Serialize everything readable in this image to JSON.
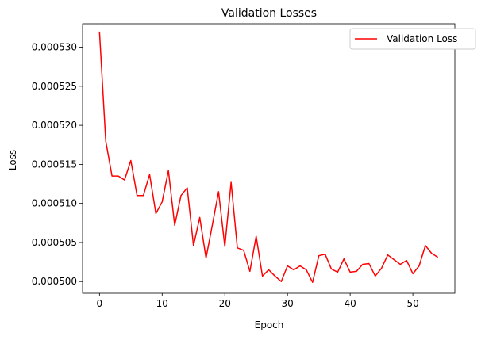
{
  "chart_data": {
    "type": "line",
    "title": "Validation Losses",
    "xlabel": "Epoch",
    "ylabel": "Loss",
    "xlim": [
      -2.7,
      56.7
    ],
    "ylim": [
      0.0004985,
      0.000533
    ],
    "xticks": [
      0,
      10,
      20,
      30,
      40,
      50
    ],
    "xtick_labels": [
      "0",
      "10",
      "20",
      "30",
      "40",
      "50"
    ],
    "yticks": [
      0.0005,
      0.000505,
      0.00051,
      0.000515,
      0.00052,
      0.000525,
      0.00053
    ],
    "ytick_labels": [
      "0.000500",
      "0.000505",
      "0.000510",
      "0.000515",
      "0.000520",
      "0.000525",
      "0.000530"
    ],
    "grid": false,
    "legend_position": "top-right",
    "series": [
      {
        "name": "Validation Loss",
        "color": "#ff0000",
        "x": [
          0,
          1,
          2,
          3,
          4,
          5,
          6,
          7,
          8,
          9,
          10,
          11,
          12,
          13,
          14,
          15,
          16,
          17,
          18,
          19,
          20,
          21,
          22,
          23,
          24,
          25,
          26,
          27,
          28,
          29,
          30,
          31,
          32,
          33,
          34,
          35,
          36,
          37,
          38,
          39,
          40,
          41,
          42,
          43,
          44,
          45,
          46,
          47,
          48,
          49,
          50,
          51,
          52,
          53,
          54
        ],
        "values": [
          0.000532,
          0.000518,
          0.0005135,
          0.0005135,
          0.000513,
          0.0005155,
          0.000511,
          0.000511,
          0.0005137,
          0.0005087,
          0.0005102,
          0.0005142,
          0.0005072,
          0.000511,
          0.000512,
          0.0005046,
          0.0005082,
          0.000503,
          0.0005072,
          0.0005115,
          0.0005045,
          0.0005127,
          0.0005043,
          0.000504,
          0.0005013,
          0.0005058,
          0.0005007,
          0.0005015,
          0.0005007,
          0.0005,
          0.000502,
          0.0005015,
          0.000502,
          0.0005015,
          0.0004999,
          0.0005033,
          0.0005035,
          0.0005016,
          0.0005012,
          0.0005029,
          0.0005012,
          0.0005013,
          0.0005022,
          0.0005023,
          0.0005007,
          0.0005017,
          0.0005034,
          0.0005028,
          0.0005022,
          0.0005027,
          0.000501,
          0.000502,
          0.0005046,
          0.0005036,
          0.0005031
        ]
      }
    ]
  }
}
